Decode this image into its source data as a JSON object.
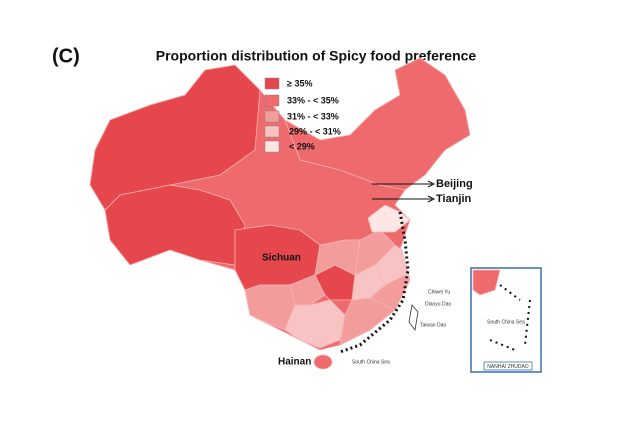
{
  "panel_label": "(C)",
  "title": "Proportion distribution of Spicy food preference",
  "legend": {
    "items": [
      {
        "label": "≥ 35%",
        "color": "#e6474d"
      },
      {
        "label": "33% - < 35%",
        "color": "#ee6a6c"
      },
      {
        "label": "31% - < 33%",
        "color": "#f39c9c"
      },
      {
        "label": "29% - < 31%",
        "color": "#f8c4c3"
      },
      {
        "label": "< 29%",
        "color": "#fde6e5"
      }
    ]
  },
  "places": [
    {
      "label": "Beijing"
    },
    {
      "label": "Tianjin"
    },
    {
      "label": "Sichuan"
    },
    {
      "label": "Hainan"
    }
  ],
  "minor_labels": [
    {
      "label": "Chiwei Yu"
    },
    {
      "label": "Diaoyu Dao"
    },
    {
      "label": "Taiwan Dao"
    },
    {
      "label": "South China Sea"
    },
    {
      "label": "South China Sea"
    },
    {
      "label": "NANHAI ZHUDAO"
    }
  ]
}
